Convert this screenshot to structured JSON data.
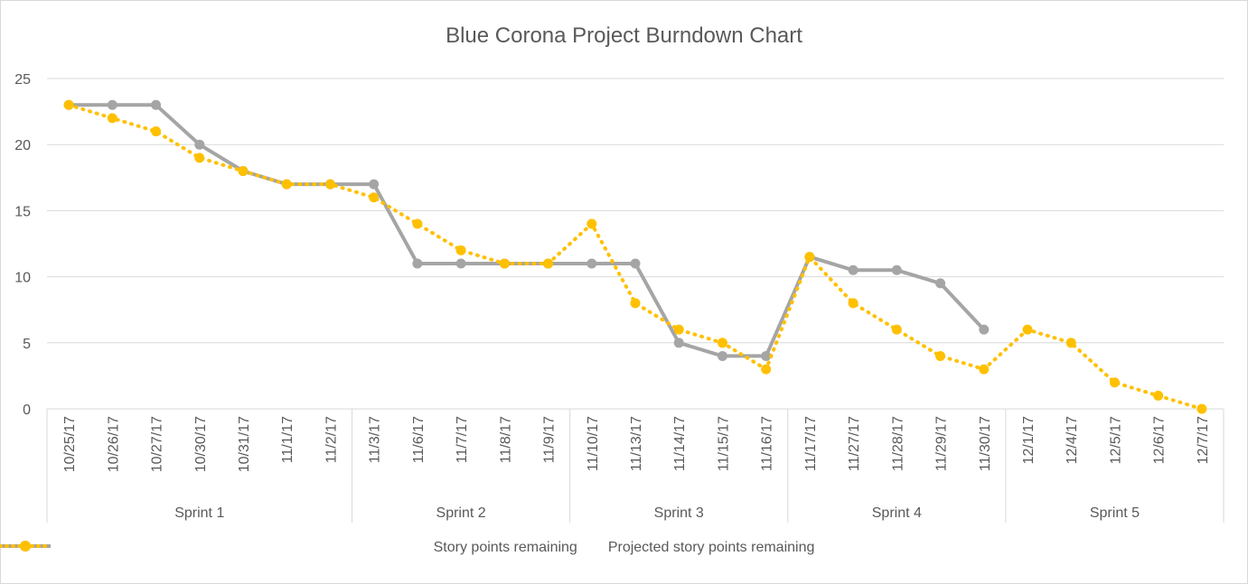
{
  "chart_data": {
    "type": "line",
    "title": "Blue Corona Project Burndown Chart",
    "xlabel": "",
    "ylabel": "",
    "ylim": [
      0,
      25
    ],
    "yticks": [
      0,
      5,
      10,
      15,
      20,
      25
    ],
    "grid": true,
    "legend_position": "bottom",
    "categories": [
      "10/25/17",
      "10/26/17",
      "10/27/17",
      "10/30/17",
      "10/31/17",
      "11/1/17",
      "11/2/17",
      "11/3/17",
      "11/6/17",
      "11/7/17",
      "11/8/17",
      "11/9/17",
      "11/10/17",
      "11/13/17",
      "11/14/17",
      "11/15/17",
      "11/16/17",
      "11/17/17",
      "11/27/17",
      "11/28/17",
      "11/29/17",
      "11/30/17",
      "12/1/17",
      "12/4/17",
      "12/5/17",
      "12/6/17",
      "12/7/17"
    ],
    "groups": [
      {
        "label": "Sprint 1",
        "count": 7
      },
      {
        "label": "Sprint 2",
        "count": 5
      },
      {
        "label": "Sprint 3",
        "count": 5
      },
      {
        "label": "Sprint 4",
        "count": 5
      },
      {
        "label": "Sprint 5",
        "count": 5
      }
    ],
    "series": [
      {
        "name": "Story points remaining",
        "color": "#a5a5a5",
        "style": "solid",
        "values": [
          23,
          23,
          23,
          20,
          18,
          17,
          17,
          17,
          11,
          11,
          11,
          11,
          11,
          11,
          5,
          4,
          4,
          11.5,
          10.5,
          10.5,
          9.5,
          6,
          null,
          null,
          null,
          null,
          null
        ]
      },
      {
        "name": "Projected story points remaining",
        "color": "#ffc000",
        "style": "dotted",
        "values": [
          23,
          22,
          21,
          19,
          18,
          17,
          17,
          16,
          14,
          12,
          11,
          11,
          14,
          8,
          6,
          5,
          3,
          11.5,
          8,
          6,
          4,
          3,
          6,
          5,
          2,
          1,
          0
        ]
      }
    ]
  }
}
